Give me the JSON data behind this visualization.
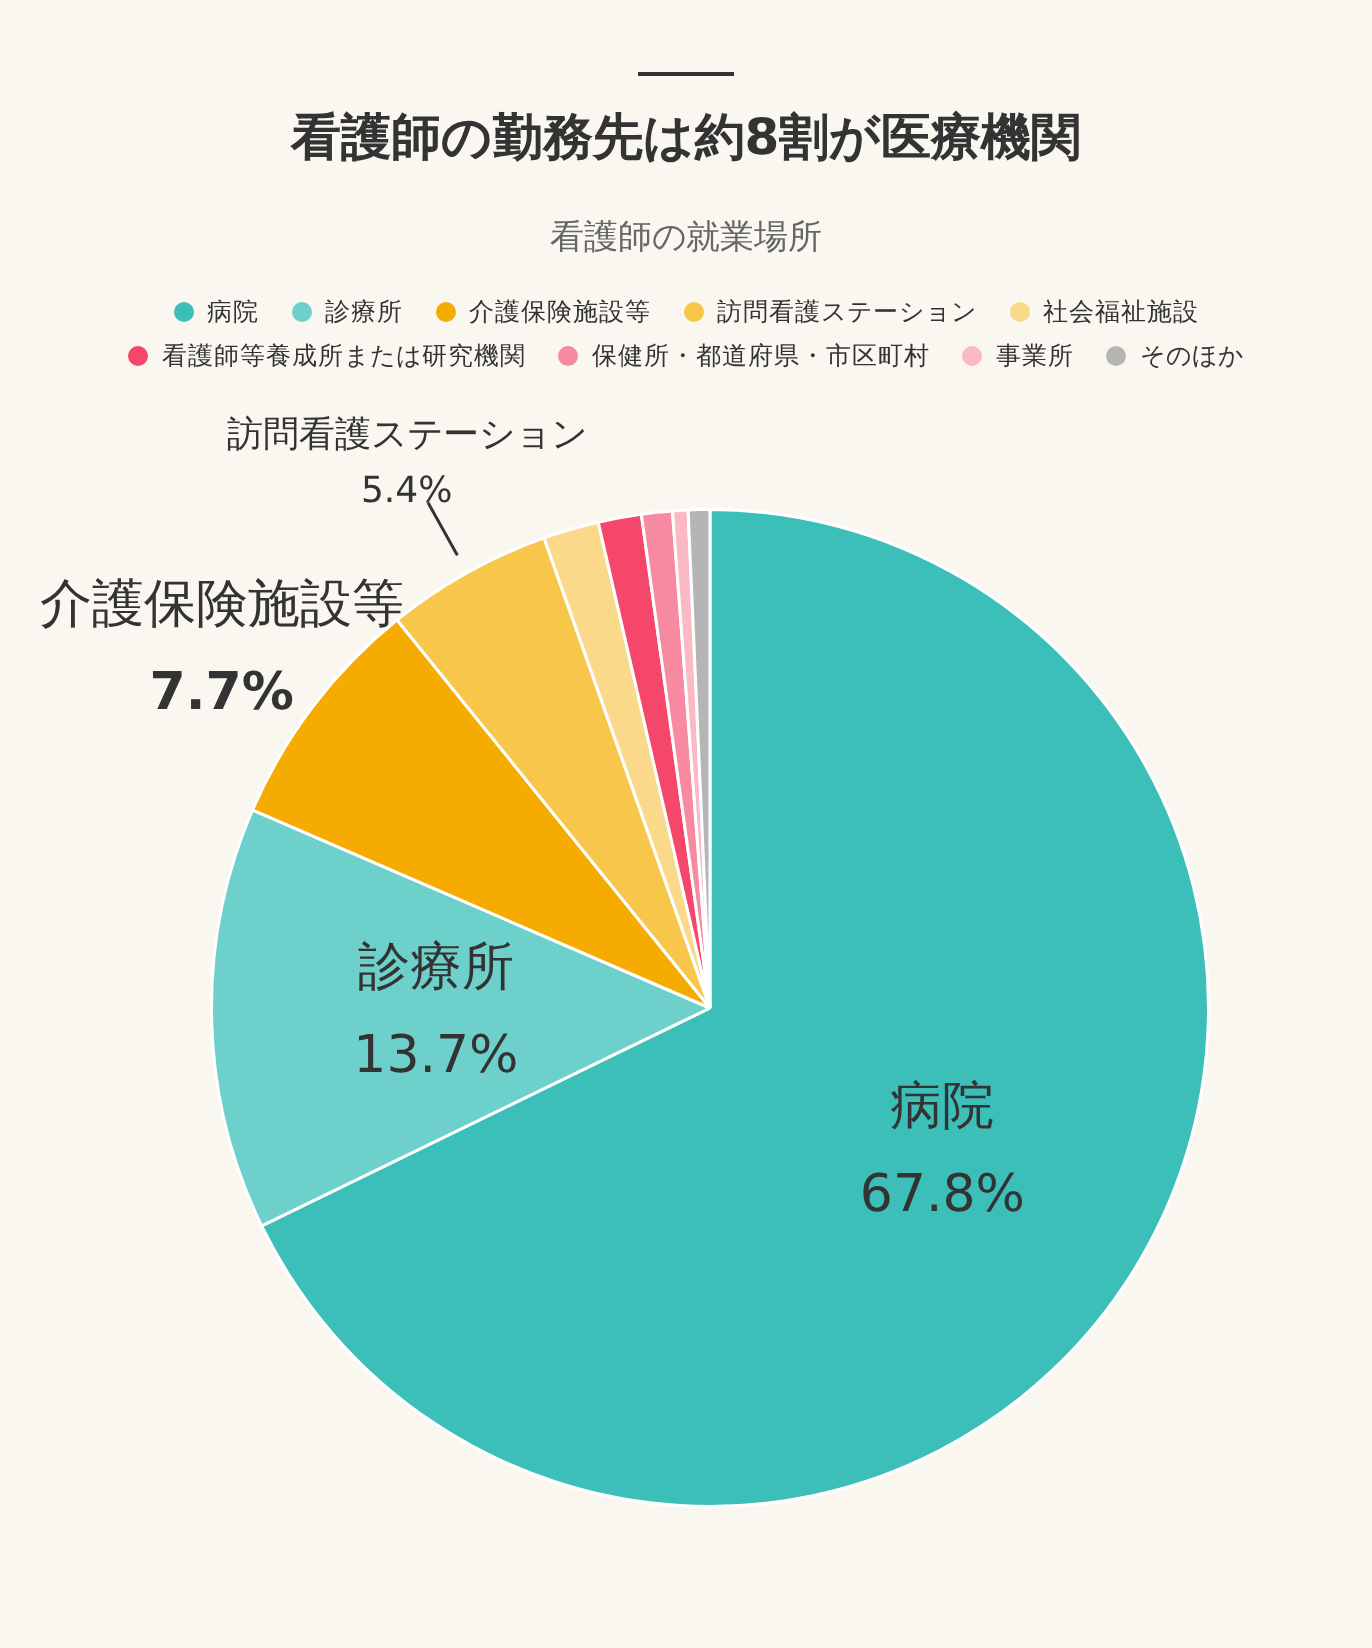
{
  "chart_data": {
    "type": "pie",
    "title": "看護師の勤務先は約8割が医療機関",
    "subtitle": "看護師の就業場所",
    "categories": [
      "病院",
      "診療所",
      "介護保険施設等",
      "訪問看護ステーション",
      "社会福祉施設",
      "看護師等養成所または研究機関",
      "保健所・都道府県・市区町村",
      "事業所",
      "そのほか"
    ],
    "values": [
      67.8,
      13.7,
      7.7,
      5.4,
      1.8,
      1.4,
      1.0,
      0.5,
      0.7
    ],
    "value_labels": [
      "67.8%",
      "13.7%",
      "7.7%",
      "5.4%",
      null,
      null,
      null,
      null,
      null
    ],
    "colors": [
      "#3bbfb8",
      "#6dd0cb",
      "#f6ab00",
      "#f8c64a",
      "#fbd98a",
      "#f5476a",
      "#f78aa0",
      "#fbb9c6",
      "#b5b5b5"
    ],
    "legend": "top"
  }
}
